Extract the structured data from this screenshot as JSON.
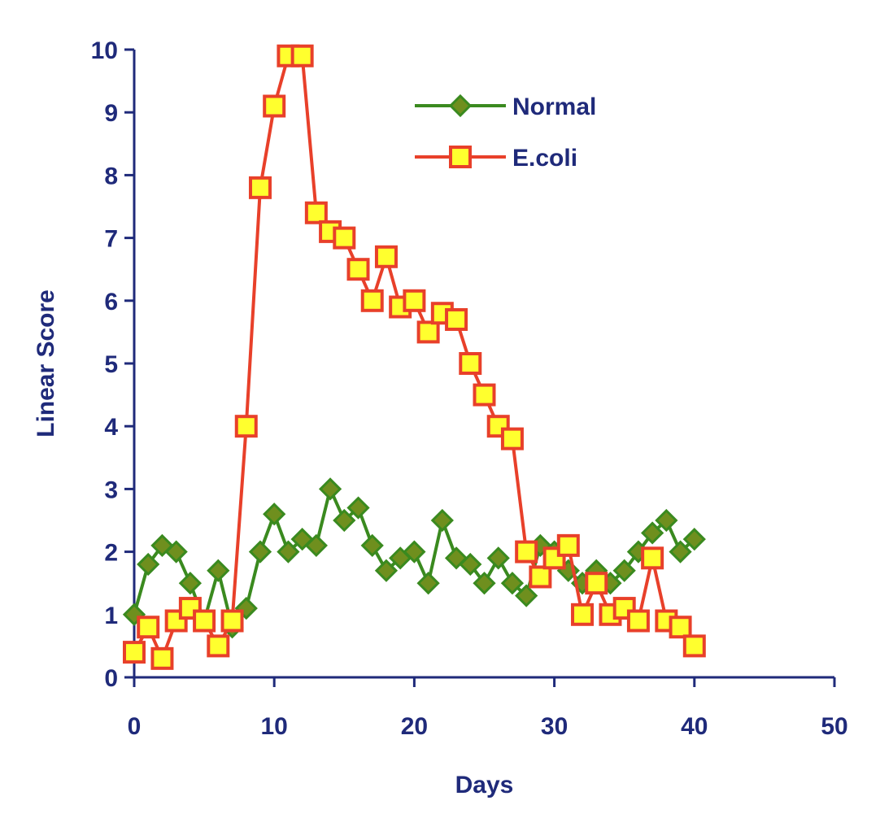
{
  "chart_data": {
    "type": "line",
    "xlabel": "Days",
    "ylabel": "Linear Score",
    "xlim": [
      0,
      50
    ],
    "ylim": [
      0,
      10
    ],
    "x_ticks": [
      "0",
      "10",
      "20",
      "30",
      "40",
      "50"
    ],
    "y_ticks": [
      "0",
      "1",
      "2",
      "3",
      "4",
      "5",
      "6",
      "7",
      "8",
      "9",
      "10"
    ],
    "grid": false,
    "legend_position": "top-center",
    "series": [
      {
        "name": "Normal",
        "marker": "diamond",
        "line_color": "#3a8a1f",
        "marker_fill": "#6f8f1e",
        "marker_stroke": "#3a8a1f",
        "x": [
          0,
          1,
          2,
          3,
          4,
          5,
          6,
          7,
          8,
          9,
          10,
          11,
          12,
          13,
          14,
          15,
          16,
          17,
          18,
          19,
          20,
          21,
          22,
          23,
          24,
          25,
          26,
          27,
          28,
          29,
          30,
          31,
          32,
          33,
          34,
          35,
          36,
          37,
          38,
          39,
          40
        ],
        "y": [
          1.0,
          1.8,
          2.1,
          2.0,
          1.5,
          0.9,
          1.7,
          0.8,
          1.1,
          2.0,
          2.6,
          2.0,
          2.2,
          2.1,
          3.0,
          2.5,
          2.7,
          2.1,
          1.7,
          1.9,
          2.0,
          1.5,
          2.5,
          1.9,
          1.8,
          1.5,
          1.9,
          1.5,
          1.3,
          2.1,
          2.0,
          1.7,
          1.5,
          1.7,
          1.5,
          1.7,
          2.0,
          2.3,
          2.5,
          2.0,
          2.2
        ]
      },
      {
        "name": "E.coli",
        "marker": "square",
        "line_color": "#e8402a",
        "marker_fill": "#ffff2e",
        "marker_stroke": "#e8402a",
        "x": [
          0,
          1,
          2,
          3,
          4,
          5,
          6,
          7,
          8,
          9,
          10,
          11,
          12,
          13,
          14,
          15,
          16,
          17,
          18,
          19,
          20,
          21,
          22,
          23,
          24,
          25,
          26,
          27,
          28,
          29,
          30,
          31,
          32,
          33,
          34,
          35,
          36,
          37,
          38,
          39,
          40
        ],
        "y": [
          0.4,
          0.8,
          0.3,
          0.9,
          1.1,
          0.9,
          0.5,
          0.9,
          4.0,
          7.8,
          9.1,
          9.9,
          9.9,
          7.4,
          7.1,
          7.0,
          6.5,
          6.0,
          6.7,
          5.9,
          6.0,
          5.5,
          5.8,
          5.7,
          5.0,
          4.5,
          4.0,
          3.8,
          2.0,
          1.6,
          1.9,
          2.1,
          1.0,
          1.5,
          1.0,
          1.1,
          0.9,
          1.9,
          0.9,
          0.8,
          0.5
        ]
      }
    ]
  }
}
